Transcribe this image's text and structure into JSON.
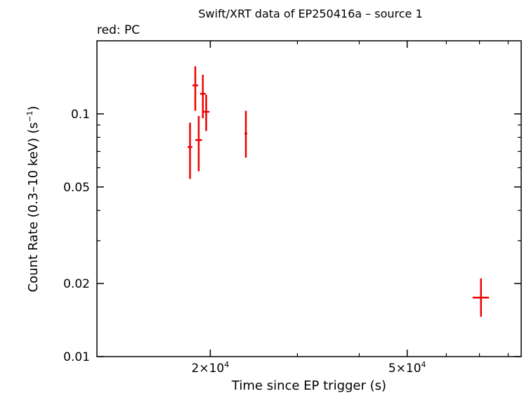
{
  "chart_data": {
    "type": "scatter",
    "title": "Swift/XRT data of EP250416a – source 1",
    "subtitle": "red: PC",
    "xlabel": "Time since EP trigger (s)",
    "ylabel": "Count Rate (0.3–10 keV) (s",
    "ylabel_sup": "−1",
    "ylabel_end": ")",
    "x_scale": "log",
    "y_scale": "log",
    "xlim": [
      11800,
      85000
    ],
    "ylim": [
      0.01,
      0.2
    ],
    "x_ticks": [
      {
        "value": 20000,
        "mantissa": "2×10",
        "exp": "4"
      },
      {
        "value": 50000,
        "mantissa": "5×10",
        "exp": "4"
      }
    ],
    "y_ticks": [
      {
        "value": 0.01,
        "label": "0.01"
      },
      {
        "value": 0.02,
        "label": "0.02"
      },
      {
        "value": 0.05,
        "label": "0.05"
      },
      {
        "value": 0.1,
        "label": "0.1"
      }
    ],
    "series": [
      {
        "name": "PC",
        "color": "#ee0000",
        "points": [
          {
            "x": 18200,
            "y": 0.073,
            "xerr": 200,
            "ylo": 0.054,
            "yhi": 0.092
          },
          {
            "x": 18650,
            "y": 0.131,
            "xerr": 250,
            "ylo": 0.103,
            "yhi": 0.157
          },
          {
            "x": 18950,
            "y": 0.078,
            "xerr": 300,
            "ylo": 0.058,
            "yhi": 0.098
          },
          {
            "x": 19320,
            "y": 0.121,
            "xerr": 250,
            "ylo": 0.096,
            "yhi": 0.145
          },
          {
            "x": 19620,
            "y": 0.102,
            "xerr": 300,
            "ylo": 0.085,
            "yhi": 0.12
          },
          {
            "x": 23600,
            "y": 0.083,
            "xerr": 150,
            "ylo": 0.066,
            "yhi": 0.103
          },
          {
            "x": 70500,
            "y": 0.0175,
            "xerr": 2700,
            "ylo": 0.0146,
            "yhi": 0.021
          }
        ]
      }
    ],
    "grid": false,
    "legend": "none"
  }
}
